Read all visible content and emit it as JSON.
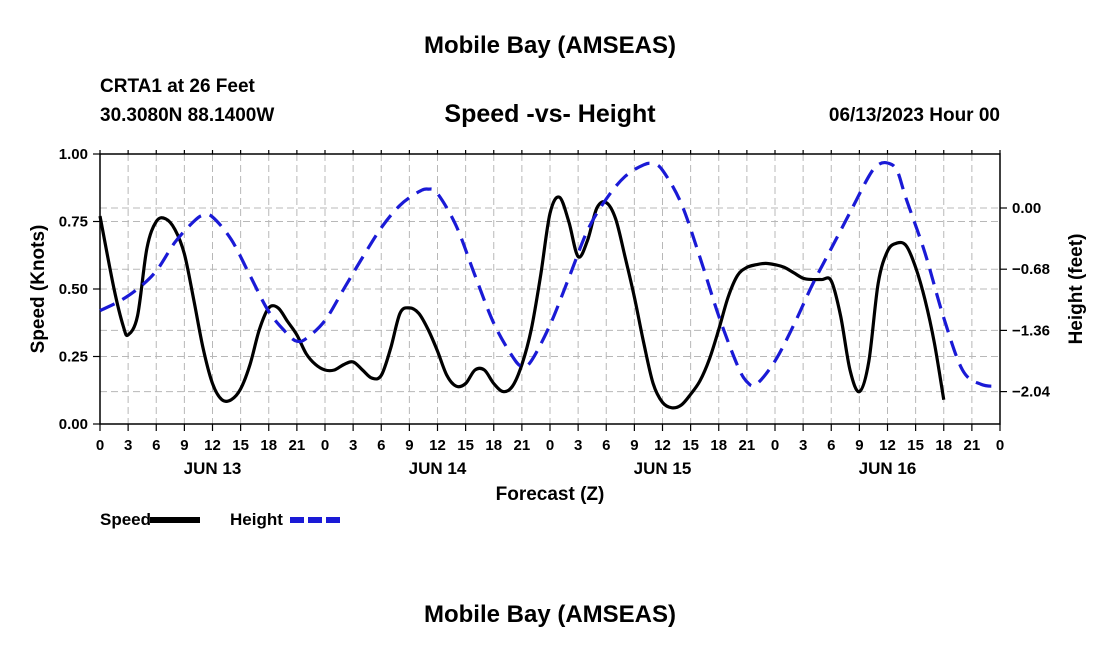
{
  "header": {
    "main_title": "Mobile Bay (AMSEAS)",
    "station": "CRTA1 at 26 Feet",
    "coords": "30.3080N  88.1400W",
    "chart_title": "Speed -vs- Height",
    "date": "06/13/2023 Hour 00"
  },
  "footer": {
    "repeat_title": "Mobile Bay (AMSEAS)"
  },
  "chart_data": {
    "type": "line",
    "title": "Speed -vs- Height",
    "xlabel": "Forecast (Z)",
    "ylabel": "Speed (Knots)",
    "y2label": "Height (feet)",
    "x_range": [
      0,
      96
    ],
    "ylim": [
      0,
      1.0
    ],
    "y2lim": [
      -2.4,
      0.6
    ],
    "y_ticks": [
      "0.00",
      "0.25",
      "0.50",
      "0.75",
      "1.00"
    ],
    "y2_ticks": [
      "0.00",
      "−0.68",
      "−1.36",
      "−2.04"
    ],
    "y2_tick_values": [
      0.0,
      -0.68,
      -1.36,
      -2.04
    ],
    "x_tick_labels": [
      "0",
      "3",
      "6",
      "9",
      "12",
      "15",
      "18",
      "21",
      "0",
      "3",
      "6",
      "9",
      "12",
      "15",
      "18",
      "21",
      "0",
      "3",
      "6",
      "9",
      "12",
      "15",
      "18",
      "21",
      "0",
      "3",
      "6",
      "9",
      "12",
      "15",
      "18",
      "21",
      "0"
    ],
    "day_labels": [
      {
        "label": "JUN 13",
        "hour": 12
      },
      {
        "label": "JUN 14",
        "hour": 36
      },
      {
        "label": "JUN 15",
        "hour": 60
      },
      {
        "label": "JUN 16",
        "hour": 84
      }
    ],
    "series": [
      {
        "name": "Speed",
        "color": "#000000",
        "style": "solid",
        "points": [
          [
            0,
            0.77
          ],
          [
            1.5,
            0.5
          ],
          [
            2.5,
            0.36
          ],
          [
            3,
            0.33
          ],
          [
            4,
            0.4
          ],
          [
            5,
            0.65
          ],
          [
            6,
            0.75
          ],
          [
            7,
            0.76
          ],
          [
            8,
            0.72
          ],
          [
            9,
            0.63
          ],
          [
            10,
            0.46
          ],
          [
            11,
            0.28
          ],
          [
            12,
            0.15
          ],
          [
            13,
            0.09
          ],
          [
            14,
            0.09
          ],
          [
            15,
            0.13
          ],
          [
            16,
            0.22
          ],
          [
            17,
            0.35
          ],
          [
            18,
            0.43
          ],
          [
            19,
            0.43
          ],
          [
            20,
            0.38
          ],
          [
            21,
            0.33
          ],
          [
            22,
            0.26
          ],
          [
            23,
            0.22
          ],
          [
            24,
            0.2
          ],
          [
            25,
            0.2
          ],
          [
            26,
            0.22
          ],
          [
            27,
            0.23
          ],
          [
            28,
            0.2
          ],
          [
            29,
            0.17
          ],
          [
            30,
            0.18
          ],
          [
            31,
            0.28
          ],
          [
            32,
            0.41
          ],
          [
            33,
            0.43
          ],
          [
            34,
            0.41
          ],
          [
            35,
            0.35
          ],
          [
            36,
            0.27
          ],
          [
            37,
            0.18
          ],
          [
            38,
            0.14
          ],
          [
            39,
            0.15
          ],
          [
            40,
            0.2
          ],
          [
            41,
            0.2
          ],
          [
            42,
            0.15
          ],
          [
            43,
            0.12
          ],
          [
            44,
            0.14
          ],
          [
            45,
            0.22
          ],
          [
            46,
            0.35
          ],
          [
            47,
            0.55
          ],
          [
            48,
            0.78
          ],
          [
            49,
            0.84
          ],
          [
            50,
            0.75
          ],
          [
            51,
            0.62
          ],
          [
            52,
            0.68
          ],
          [
            53,
            0.8
          ],
          [
            54,
            0.82
          ],
          [
            55,
            0.76
          ],
          [
            56,
            0.62
          ],
          [
            57,
            0.47
          ],
          [
            58,
            0.3
          ],
          [
            59,
            0.15
          ],
          [
            60,
            0.08
          ],
          [
            61,
            0.06
          ],
          [
            62,
            0.07
          ],
          [
            63,
            0.11
          ],
          [
            64,
            0.16
          ],
          [
            65,
            0.24
          ],
          [
            66,
            0.35
          ],
          [
            67,
            0.47
          ],
          [
            68,
            0.55
          ],
          [
            69,
            0.58
          ],
          [
            70,
            0.59
          ],
          [
            71,
            0.595
          ],
          [
            72,
            0.59
          ],
          [
            73,
            0.58
          ],
          [
            74,
            0.56
          ],
          [
            75,
            0.54
          ],
          [
            76,
            0.535
          ],
          [
            77,
            0.535
          ],
          [
            78,
            0.53
          ],
          [
            79,
            0.4
          ],
          [
            80,
            0.2
          ],
          [
            81,
            0.12
          ],
          [
            82,
            0.23
          ],
          [
            83,
            0.52
          ],
          [
            84,
            0.64
          ],
          [
            85,
            0.67
          ],
          [
            86,
            0.66
          ],
          [
            87,
            0.58
          ],
          [
            88,
            0.46
          ],
          [
            89,
            0.3
          ],
          [
            90,
            0.09
          ]
        ]
      },
      {
        "name": "Height",
        "color": "#1a1ad6",
        "style": "dashed",
        "points": [
          [
            0,
            -1.14
          ],
          [
            2,
            -1.04
          ],
          [
            4,
            -0.9
          ],
          [
            6,
            -0.7
          ],
          [
            8,
            -0.38
          ],
          [
            10,
            -0.15
          ],
          [
            11,
            -0.08
          ],
          [
            12,
            -0.1
          ],
          [
            14,
            -0.35
          ],
          [
            16,
            -0.75
          ],
          [
            18,
            -1.15
          ],
          [
            20,
            -1.4
          ],
          [
            21,
            -1.48
          ],
          [
            22,
            -1.45
          ],
          [
            24,
            -1.25
          ],
          [
            26,
            -0.9
          ],
          [
            28,
            -0.55
          ],
          [
            30,
            -0.22
          ],
          [
            32,
            0.03
          ],
          [
            34,
            0.18
          ],
          [
            35,
            0.21
          ],
          [
            36,
            0.16
          ],
          [
            38,
            -0.2
          ],
          [
            40,
            -0.75
          ],
          [
            42,
            -1.28
          ],
          [
            44,
            -1.65
          ],
          [
            45,
            -1.76
          ],
          [
            46,
            -1.7
          ],
          [
            48,
            -1.3
          ],
          [
            50,
            -0.78
          ],
          [
            52,
            -0.25
          ],
          [
            54,
            0.1
          ],
          [
            56,
            0.35
          ],
          [
            58,
            0.48
          ],
          [
            59,
            0.49
          ],
          [
            60,
            0.42
          ],
          [
            62,
            0.05
          ],
          [
            64,
            -0.55
          ],
          [
            66,
            -1.2
          ],
          [
            68,
            -1.75
          ],
          [
            69,
            -1.93
          ],
          [
            70,
            -1.96
          ],
          [
            72,
            -1.7
          ],
          [
            74,
            -1.3
          ],
          [
            76,
            -0.85
          ],
          [
            78,
            -0.45
          ],
          [
            80,
            -0.05
          ],
          [
            82,
            0.35
          ],
          [
            83,
            0.48
          ],
          [
            84,
            0.5
          ],
          [
            85,
            0.42
          ],
          [
            86,
            0.1
          ],
          [
            88,
            -0.5
          ],
          [
            90,
            -1.22
          ],
          [
            92,
            -1.8
          ],
          [
            94,
            -1.96
          ],
          [
            96,
            -1.98
          ]
        ]
      }
    ],
    "legend": [
      {
        "label": "Speed",
        "color": "#000000",
        "style": "solid"
      },
      {
        "label": "Height",
        "color": "#1a1ad6",
        "style": "dashed"
      }
    ]
  }
}
